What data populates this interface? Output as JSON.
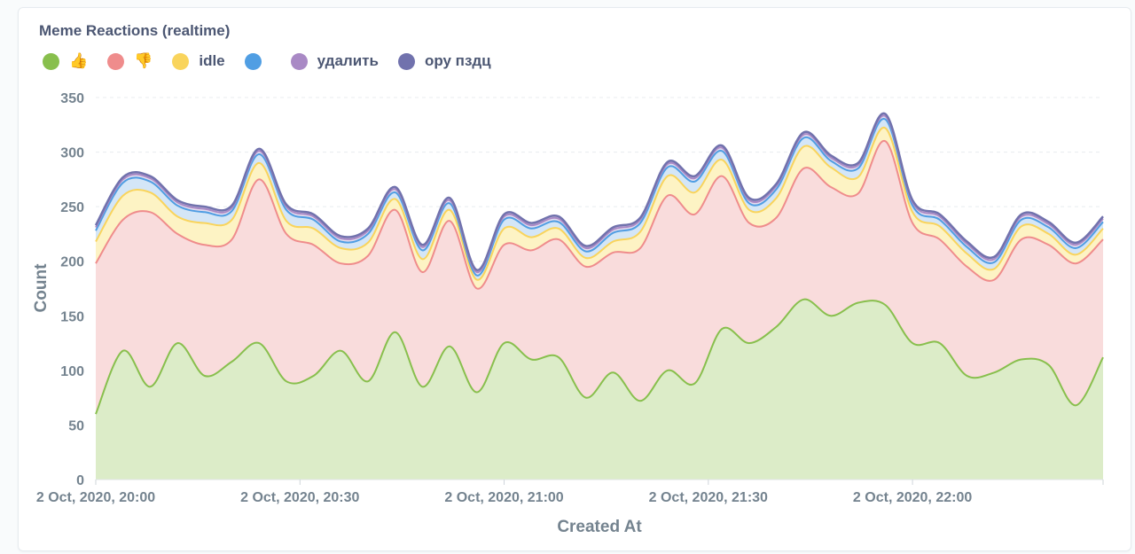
{
  "chart_data": {
    "type": "area",
    "stacked": true,
    "title": "Meme Reactions (realtime)",
    "xlabel": "Created At",
    "ylabel": "Count",
    "ylim": [
      0,
      350
    ],
    "yticks": [
      0,
      50,
      100,
      150,
      200,
      250,
      300,
      350
    ],
    "xlim": [
      "2020-10-02 20:00",
      "2020-10-02 22:28"
    ],
    "xtick_labels": [
      {
        "t": "2020-10-02 20:00",
        "label": "2 Oct, 2020, 20:00"
      },
      {
        "t": "2020-10-02 20:30",
        "label": "2 Oct, 2020, 20:30"
      },
      {
        "t": "2020-10-02 21:00",
        "label": "2 Oct, 2020, 21:00"
      },
      {
        "t": "2020-10-02 21:30",
        "label": "2 Oct, 2020, 21:30"
      },
      {
        "t": "2020-10-02 22:00",
        "label": "2 Oct, 2020, 22:00"
      }
    ],
    "grid": true,
    "legend_position": "top-left",
    "x": [
      "20:00",
      "20:04",
      "20:08",
      "20:12",
      "20:16",
      "20:20",
      "20:24",
      "20:28",
      "20:32",
      "20:36",
      "20:40",
      "20:44",
      "20:48",
      "20:52",
      "20:56",
      "21:00",
      "21:04",
      "21:08",
      "21:12",
      "21:16",
      "21:20",
      "21:24",
      "21:28",
      "21:32",
      "21:36",
      "21:40",
      "21:44",
      "21:48",
      "21:52",
      "21:56",
      "22:00",
      "22:04",
      "22:08",
      "22:12",
      "22:16",
      "22:20",
      "22:24",
      "22:28"
    ],
    "series": [
      {
        "name": "👍",
        "color": "#88bf4d",
        "fill": "#dcecc8",
        "values": [
          60,
          118,
          85,
          125,
          95,
          108,
          125,
          90,
          95,
          118,
          90,
          135,
          85,
          122,
          80,
          125,
          110,
          112,
          75,
          98,
          72,
          100,
          88,
          138,
          125,
          140,
          165,
          150,
          162,
          160,
          125,
          125,
          95,
          98,
          110,
          105,
          68,
          112
        ]
      },
      {
        "name": "👎",
        "color": "#ef8c8c",
        "fill": "#f9dcdc",
        "values": [
          138,
          120,
          160,
          100,
          120,
          112,
          150,
          135,
          120,
          80,
          115,
          112,
          105,
          115,
          95,
          90,
          100,
          108,
          120,
          110,
          140,
          160,
          155,
          140,
          110,
          100,
          120,
          118,
          100,
          150,
          110,
          95,
          100,
          85,
          110,
          110,
          130,
          108
        ]
      },
      {
        "name": "idle",
        "color": "#f9d45c",
        "fill": "#fdf3c4",
        "values": [
          20,
          22,
          18,
          16,
          20,
          18,
          15,
          12,
          15,
          14,
          12,
          10,
          12,
          10,
          8,
          15,
          12,
          10,
          8,
          10,
          15,
          18,
          20,
          15,
          12,
          18,
          20,
          18,
          15,
          12,
          10,
          12,
          12,
          10,
          12,
          10,
          8,
          10
        ]
      },
      {
        "name": "",
        "color": "#509ee3",
        "fill": "#d4e6f7",
        "values": [
          10,
          12,
          10,
          10,
          10,
          8,
          8,
          10,
          8,
          6,
          8,
          6,
          8,
          6,
          4,
          8,
          8,
          6,
          6,
          8,
          8,
          8,
          10,
          8,
          6,
          8,
          8,
          6,
          8,
          8,
          6,
          6,
          6,
          6,
          6,
          6,
          6,
          6
        ]
      },
      {
        "name": "удалить",
        "color": "#a989c5",
        "fill": "#e5dcee",
        "values": [
          3,
          3,
          3,
          3,
          3,
          3,
          3,
          3,
          3,
          3,
          3,
          3,
          3,
          3,
          3,
          3,
          3,
          3,
          3,
          3,
          3,
          3,
          3,
          3,
          3,
          3,
          3,
          3,
          3,
          3,
          3,
          3,
          3,
          3,
          3,
          3,
          3,
          3
        ]
      },
      {
        "name": "ору пздц",
        "color": "#7172ad",
        "fill": "#dedfee",
        "values": [
          2,
          2,
          2,
          2,
          2,
          2,
          2,
          2,
          2,
          2,
          2,
          2,
          2,
          2,
          2,
          2,
          2,
          2,
          2,
          2,
          2,
          2,
          2,
          2,
          2,
          2,
          2,
          2,
          2,
          2,
          2,
          2,
          2,
          2,
          2,
          2,
          2,
          2
        ]
      }
    ]
  }
}
